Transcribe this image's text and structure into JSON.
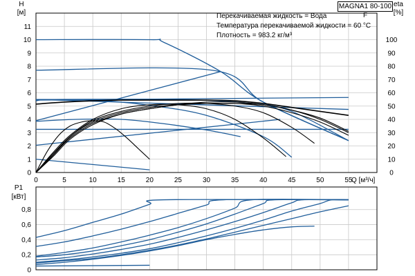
{
  "model_label": "MAGNA1 80-100 F",
  "info_lines": [
    "Перекачиваемая жидкость = Вода",
    "Температура перекачиваемой жидкости = 60 °C",
    "Плотность = 983.2 кг/м³"
  ],
  "colors": {
    "curve_blue": "#1f5d9a",
    "curve_black": "#000000",
    "grid": "#c8c8c8",
    "axis": "#000000"
  },
  "chart_data": [
    {
      "type": "line",
      "title": "",
      "ylabel_left": [
        "H",
        "[м]"
      ],
      "ylabel_right": [
        "eta",
        "[%]"
      ],
      "xlabel": "Q [м³/ч]",
      "xlim": [
        0,
        60
      ],
      "ylim": [
        0,
        12
      ],
      "eta_lim": [
        0,
        100
      ],
      "x_ticks": [
        0,
        5,
        10,
        15,
        20,
        25,
        30,
        35,
        40,
        45,
        50,
        55
      ],
      "y_ticks": [
        0,
        1,
        2,
        3,
        4,
        5,
        6,
        7,
        8,
        9,
        10,
        11
      ],
      "eta_ticks": [
        0,
        10,
        20,
        30,
        40,
        50,
        60,
        70,
        80,
        90,
        100
      ],
      "grid": true,
      "head_curves": [
        {
          "style": "blue",
          "x": [
            0,
            20,
            22.5,
            32.5,
            40,
            55
          ],
          "y": [
            10,
            10,
            9.8,
            7.6,
            5.3,
            2.4
          ]
        },
        {
          "style": "blue",
          "x": [
            0,
            31,
            40,
            55
          ],
          "y": [
            7.7,
            7.7,
            5.3,
            2.4
          ]
        },
        {
          "style": "blue",
          "x": [
            0,
            25,
            38,
            45,
            55
          ],
          "y": [
            5.5,
            5.5,
            5.2,
            4.6,
            2.4
          ]
        },
        {
          "style": "blue",
          "x": [
            0,
            2.5,
            12,
            21,
            30,
            40,
            45
          ],
          "y": [
            5.4,
            5.5,
            5.4,
            5,
            4.3,
            2.7,
            1.15
          ]
        },
        {
          "style": "blue",
          "x": [
            0,
            7,
            15,
            22,
            30,
            36
          ],
          "y": [
            3.85,
            4,
            4,
            3.7,
            3.2,
            2.7
          ]
        },
        {
          "style": "blue",
          "x": [
            0,
            20
          ],
          "y": [
            1,
            0.2
          ]
        },
        {
          "style": "blue",
          "x": [
            0,
            55
          ],
          "y": [
            3.25,
            3.25
          ]
        },
        {
          "style": "blue",
          "x": [
            0,
            43
          ],
          "y": [
            2.05,
            4.0
          ]
        },
        {
          "style": "blue",
          "x": [
            0,
            32.5
          ],
          "y": [
            3.9,
            7.6
          ]
        },
        {
          "style": "blue",
          "x": [
            0,
            55
          ],
          "y": [
            5.45,
            5.65
          ]
        },
        {
          "style": "blue",
          "x": [
            0,
            55
          ],
          "y": [
            5.5,
            4.75
          ]
        },
        {
          "style": "black",
          "x": [
            0,
            5,
            10,
            15,
            20,
            25,
            30,
            35,
            40,
            45,
            50,
            55
          ],
          "y": [
            5.15,
            5.3,
            5.4,
            5.45,
            5.45,
            5.45,
            5.45,
            5.4,
            5.2,
            4.9,
            4.6,
            4.3
          ]
        }
      ],
      "eta_curves": [
        {
          "x": [
            0,
            2,
            4,
            6,
            8,
            10,
            12,
            14,
            16,
            18,
            20
          ],
          "y": [
            0,
            16,
            28,
            35,
            38,
            39,
            38,
            33,
            26,
            18,
            10
          ]
        },
        {
          "x": [
            0,
            3,
            6,
            10,
            15,
            20,
            25,
            30,
            35,
            40,
            44
          ],
          "y": [
            0,
            15,
            28,
            40,
            48,
            51,
            51,
            48,
            40,
            26,
            12
          ]
        },
        {
          "x": [
            0,
            3,
            6,
            10,
            15,
            20,
            25,
            30,
            35,
            40,
            45,
            49
          ],
          "y": [
            0,
            14,
            27,
            39,
            46,
            50,
            52,
            52,
            50,
            45,
            34,
            22
          ]
        },
        {
          "x": [
            0,
            3,
            6,
            10,
            15,
            20,
            25,
            30,
            35,
            40,
            45,
            50,
            55
          ],
          "y": [
            0,
            13,
            27,
            38,
            45,
            49,
            51,
            52,
            52,
            50,
            45,
            38,
            28
          ]
        },
        {
          "x": [
            0,
            3,
            6,
            10,
            15,
            20,
            25,
            30,
            35,
            40,
            45,
            50,
            55
          ],
          "y": [
            0,
            13,
            26,
            37,
            44,
            48,
            51,
            52,
            52,
            51,
            47,
            40,
            30
          ]
        },
        {
          "x": [
            0,
            3,
            6,
            10,
            15,
            20,
            25,
            30,
            35,
            40,
            45,
            50,
            55
          ],
          "y": [
            0,
            12,
            25,
            36,
            44,
            48,
            51,
            53,
            53,
            51,
            47,
            41,
            31
          ]
        }
      ]
    },
    {
      "type": "line",
      "title": "",
      "ylabel": [
        "P1",
        "[кВт]"
      ],
      "xlim": [
        0,
        60
      ],
      "ylim": [
        0,
        1.1
      ],
      "y_ticks": [
        0,
        0.2,
        0.4,
        0.6,
        0.8
      ],
      "y_tick_labels": [
        "0",
        "0,2",
        "0,4",
        "0,6",
        "0,8"
      ],
      "grid": true,
      "curves": [
        {
          "x": [
            0,
            5,
            10,
            15,
            20,
            22.5,
            55
          ],
          "y": [
            0.43,
            0.52,
            0.63,
            0.74,
            0.87,
            0.93,
            0.93
          ]
        },
        {
          "x": [
            0,
            5,
            10,
            15,
            20,
            25,
            30,
            33,
            55
          ],
          "y": [
            0.31,
            0.37,
            0.45,
            0.54,
            0.64,
            0.75,
            0.86,
            0.93,
            0.93
          ]
        },
        {
          "x": [
            0,
            5,
            10,
            15,
            20,
            25,
            30,
            35,
            38,
            55
          ],
          "y": [
            0.18,
            0.23,
            0.29,
            0.37,
            0.46,
            0.56,
            0.68,
            0.82,
            0.93,
            0.93
          ]
        },
        {
          "x": [
            0,
            5,
            10,
            15,
            20,
            25,
            30,
            35,
            40,
            42,
            55
          ],
          "y": [
            0.17,
            0.2,
            0.25,
            0.32,
            0.4,
            0.5,
            0.61,
            0.74,
            0.88,
            0.93,
            0.93
          ]
        },
        {
          "x": [
            0,
            5,
            10,
            15,
            20,
            25,
            30,
            35,
            40,
            45,
            47,
            55
          ],
          "y": [
            0.13,
            0.16,
            0.21,
            0.27,
            0.34,
            0.43,
            0.53,
            0.64,
            0.76,
            0.89,
            0.93,
            0.93
          ]
        },
        {
          "x": [
            0,
            5,
            10,
            15,
            20,
            25,
            30,
            35,
            40,
            45,
            50,
            52,
            55
          ],
          "y": [
            0.1,
            0.13,
            0.17,
            0.22,
            0.28,
            0.36,
            0.45,
            0.55,
            0.66,
            0.78,
            0.88,
            0.93,
            0.93
          ]
        },
        {
          "x": [
            0,
            5,
            10,
            15,
            20,
            25,
            30,
            35,
            40,
            45,
            50,
            55
          ],
          "y": [
            0.09,
            0.12,
            0.15,
            0.2,
            0.26,
            0.33,
            0.41,
            0.5,
            0.59,
            0.68,
            0.77,
            0.85
          ]
        },
        {
          "x": [
            0,
            5,
            10,
            15,
            20,
            25,
            30,
            35,
            40,
            45,
            49
          ],
          "y": [
            0.07,
            0.1,
            0.14,
            0.19,
            0.25,
            0.32,
            0.4,
            0.47,
            0.53,
            0.57,
            0.58
          ]
        },
        {
          "x": [
            0,
            20
          ],
          "y": [
            0.05,
            0.06
          ]
        }
      ]
    }
  ]
}
